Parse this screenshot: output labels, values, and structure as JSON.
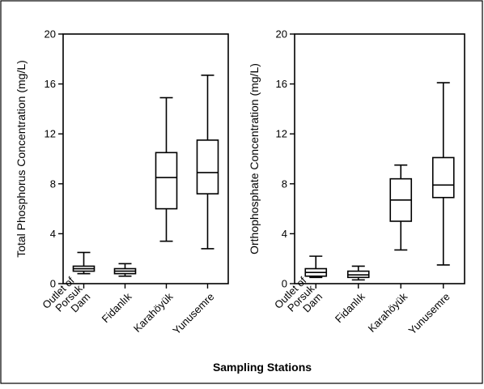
{
  "chart_data": [
    {
      "type": "box",
      "ylabel": "Total Phosphorus Concentration (mg/L)",
      "ylim": [
        0,
        20
      ],
      "yticks": [
        0,
        4,
        8,
        12,
        16,
        20
      ],
      "categories": [
        [
          "Outlet of",
          "Porsuk",
          "Dam"
        ],
        [
          "Fidanlık"
        ],
        [
          "Karahöyük"
        ],
        [
          "Yunusemre"
        ]
      ],
      "boxes": [
        {
          "min": 0.8,
          "q1": 1.0,
          "median": 1.2,
          "q3": 1.4,
          "max": 2.5
        },
        {
          "min": 0.6,
          "q1": 0.8,
          "median": 1.0,
          "q3": 1.2,
          "max": 1.6
        },
        {
          "min": 3.4,
          "q1": 6.0,
          "median": 8.5,
          "q3": 10.5,
          "max": 14.9
        },
        {
          "min": 2.8,
          "q1": 7.2,
          "median": 8.9,
          "q3": 11.5,
          "max": 16.7
        }
      ]
    },
    {
      "type": "box",
      "ylabel": "Orthophosphate Concentration (mg/L)",
      "ylim": [
        0,
        20
      ],
      "yticks": [
        0,
        4,
        8,
        12,
        16,
        20
      ],
      "categories": [
        [
          "Outlet of",
          "Porsuk",
          "Dam"
        ],
        [
          "Fidanlık"
        ],
        [
          "Karahöyük"
        ],
        [
          "Yunusemre"
        ]
      ],
      "boxes": [
        {
          "min": 0.5,
          "q1": 0.6,
          "median": 0.9,
          "q3": 1.2,
          "max": 2.2
        },
        {
          "min": 0.3,
          "q1": 0.5,
          "median": 0.7,
          "q3": 1.0,
          "max": 1.4
        },
        {
          "min": 2.7,
          "q1": 5.0,
          "median": 6.7,
          "q3": 8.4,
          "max": 9.5
        },
        {
          "min": 1.5,
          "q1": 6.9,
          "median": 7.9,
          "q3": 10.1,
          "max": 16.1
        }
      ]
    }
  ],
  "xlabel": "Sampling Stations"
}
